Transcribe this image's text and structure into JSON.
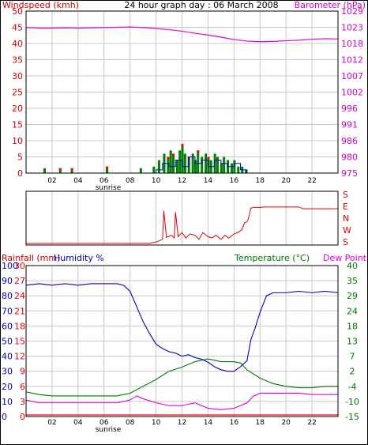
{
  "title": "24 hour graph day : 06 March 2008",
  "colors": {
    "wind_axis": "#cc0000",
    "baro_axis": "#cc00cc",
    "baro_line": "#dd00dd",
    "wind_line": "#0000cc",
    "gust_bar": "#008000",
    "gust_high": "#ff0000",
    "dir_line": "#dd0000",
    "rain": "#ee0000",
    "humidity": "#0000bb",
    "temperature": "#007700",
    "dewpoint": "#dd00dd",
    "grid": "#c8c8c8"
  },
  "panels": {
    "wind_baro": {
      "left_label": "Windspeed (kmh)",
      "right_label": "Barometer (hPa)",
      "left_ticks": [
        "50",
        "45",
        "40",
        "35",
        "30",
        "25",
        "20",
        "15",
        "10",
        "5",
        "0"
      ],
      "right_ticks": [
        "1029",
        "1023",
        "1018",
        "1012",
        "1007",
        "1002",
        "996",
        "991",
        "986",
        "980",
        "975"
      ],
      "x_ticks": [
        "02",
        "04",
        "06",
        "08",
        "10",
        "12",
        "14",
        "16",
        "18",
        "20",
        "22",
        ""
      ],
      "sunrise_label": "sunrise"
    },
    "direction": {
      "right_ticks": [
        "S",
        "E",
        "N",
        "W",
        "S"
      ]
    },
    "temp_hum": {
      "rain_label": "Rainfall (mm)",
      "hum_label": "Humidity %",
      "temp_label": "Temperature (°C)",
      "dew_label": "Dew Point",
      "rain_ticks": [
        "30",
        "27",
        "24",
        "21",
        "18",
        "15",
        "12",
        "9",
        "6",
        "3",
        "0"
      ],
      "hum_ticks": [
        "100",
        "90",
        "80",
        "70",
        "60",
        "50",
        "40",
        "30",
        "20",
        "10",
        "0"
      ],
      "right_ticks": [
        "40",
        "35",
        "29",
        "24",
        "18",
        "13",
        "7",
        "2",
        "-4",
        "-10",
        "-15"
      ],
      "x_ticks": [
        "02",
        "04",
        "06",
        "08",
        "10",
        "12",
        "14",
        "16",
        "18",
        "20",
        "22",
        ""
      ],
      "sunrise_label": "sunrise"
    }
  },
  "chart_data": [
    {
      "type": "line",
      "x_unit": "hour",
      "xlim": [
        0,
        24
      ],
      "series": [
        {
          "name": "Barometer (hPa)",
          "axis": "right",
          "ylim": [
            975,
            1029
          ],
          "x": [
            0,
            1,
            2,
            3,
            4,
            5,
            6,
            7,
            8,
            9,
            10,
            11,
            12,
            13,
            14,
            15,
            16,
            17,
            18,
            19,
            20,
            21,
            22,
            23,
            24
          ],
          "values": [
            1023.5,
            1023.3,
            1023.3,
            1023.4,
            1023.3,
            1023.4,
            1023.5,
            1023.6,
            1023.7,
            1023.5,
            1023.2,
            1022.8,
            1022.3,
            1021.6,
            1021.0,
            1020.3,
            1019.5,
            1019.0,
            1018.8,
            1018.9,
            1019.1,
            1019.3,
            1019.6,
            1019.8,
            1019.7
          ]
        },
        {
          "name": "Windspeed (kmh)",
          "axis": "left",
          "ylim": [
            0,
            50
          ],
          "x": [
            0,
            1,
            2,
            3,
            4,
            5,
            6,
            7,
            8,
            9,
            10,
            10.5,
            11,
            11.5,
            12,
            12.5,
            13,
            13.5,
            14,
            14.5,
            15,
            15.5,
            16,
            16.5,
            17,
            18,
            19,
            20,
            21,
            22,
            23,
            24
          ],
          "values": [
            0,
            0,
            0,
            0,
            0,
            0,
            0,
            0,
            0,
            0,
            1,
            3,
            2,
            4,
            2,
            5,
            3,
            4,
            2,
            4,
            3,
            2,
            3,
            1,
            0,
            0,
            0,
            0,
            0,
            0,
            0,
            0
          ]
        }
      ],
      "gusts": {
        "name": "Gust",
        "x": [
          1.4,
          2.6,
          3.5,
          6.2,
          8.8,
          9.8,
          10.2,
          10.6,
          10.9,
          11.1,
          11.3,
          11.6,
          11.8,
          12.0,
          12.2,
          12.5,
          12.8,
          13.0,
          13.2,
          13.5,
          13.8,
          14.0,
          14.2,
          14.5,
          14.7,
          15.0,
          15.2,
          15.5,
          15.8,
          16.0,
          16.3,
          16.6,
          16.9
        ],
        "values": [
          1.5,
          1.5,
          1.5,
          2,
          1.5,
          2,
          4,
          6,
          5,
          7,
          6,
          4,
          7,
          9,
          6,
          5,
          6,
          4,
          7,
          5,
          6,
          5,
          4,
          6,
          5,
          3,
          5,
          4,
          3,
          4,
          2,
          2,
          1
        ],
        "high": [
          false,
          true,
          true,
          true,
          false,
          false,
          false,
          false,
          true,
          false,
          true,
          false,
          false,
          true,
          false,
          true,
          false,
          false,
          true,
          false,
          false,
          true,
          false,
          false,
          false,
          false,
          false,
          false,
          false,
          false,
          false,
          false,
          false
        ]
      }
    },
    {
      "type": "line",
      "x_unit": "hour",
      "xlim": [
        0,
        24
      ],
      "ylabels": [
        "S",
        "E",
        "N",
        "W",
        "S"
      ],
      "series": [
        {
          "name": "Wind direction",
          "ylim": [
            0,
            360
          ],
          "x": [
            0,
            9.5,
            10,
            10.5,
            10.6,
            10.8,
            11.2,
            11.4,
            11.5,
            11.7,
            12,
            12.3,
            12.6,
            13,
            13.3,
            13.6,
            14,
            14.3,
            14.6,
            15,
            15.3,
            15.6,
            16,
            16.3,
            16.6,
            16.8,
            17,
            17.1,
            17.3,
            17.5,
            18,
            18.4,
            19,
            20,
            21,
            21.3,
            22,
            23,
            24
          ],
          "values": [
            0,
            0,
            10,
            30,
            240,
            45,
            60,
            40,
            230,
            50,
            80,
            40,
            70,
            60,
            30,
            80,
            50,
            40,
            60,
            30,
            60,
            40,
            70,
            80,
            100,
            150,
            160,
            180,
            260,
            265,
            265,
            268,
            268,
            268,
            268,
            255,
            255,
            255,
            255
          ]
        }
      ]
    },
    {
      "type": "line",
      "x_unit": "hour",
      "xlim": [
        0,
        24
      ],
      "series": [
        {
          "name": "Humidity %",
          "axis": "left",
          "ylim": [
            0,
            100
          ],
          "x": [
            0,
            1,
            2,
            3,
            4,
            5,
            6,
            7,
            7.5,
            8,
            8.5,
            9,
            9.5,
            10,
            10.5,
            11,
            11.5,
            12,
            12.5,
            13,
            13.5,
            14,
            14.5,
            15,
            15.5,
            16,
            16.5,
            17,
            17.3,
            17.6,
            18,
            18.5,
            19,
            20,
            21,
            22,
            23,
            24
          ],
          "values": [
            87,
            88,
            87,
            88,
            87,
            88,
            88,
            88,
            87,
            83,
            73,
            63,
            55,
            48,
            45,
            43,
            42,
            40,
            41,
            39,
            38,
            36,
            33,
            31,
            30,
            30,
            33,
            37,
            51,
            58,
            69,
            80,
            82,
            82,
            83,
            82,
            83,
            82
          ]
        },
        {
          "name": "Temperature (°C)",
          "axis": "right",
          "ylim": [
            -15,
            40
          ],
          "x": [
            0,
            1,
            2,
            3,
            4,
            5,
            6,
            7,
            8,
            9,
            10,
            11,
            12,
            13,
            14,
            15,
            16,
            16.5,
            17,
            18,
            19,
            20,
            21,
            22,
            23,
            24
          ],
          "values": [
            -6,
            -7,
            -7.5,
            -7.5,
            -7.5,
            -7.5,
            -7.5,
            -7.5,
            -6.5,
            -4,
            -1.5,
            1.5,
            3,
            5,
            6,
            5,
            5,
            4.5,
            2,
            -1,
            -3,
            -4,
            -4.5,
            -4.5,
            -4,
            -4
          ]
        },
        {
          "name": "Dew Point",
          "axis": "right",
          "ylim": [
            -15,
            40
          ],
          "x": [
            0,
            1,
            2,
            3,
            4,
            5,
            6,
            7,
            8,
            8.5,
            9,
            10,
            11,
            12,
            13,
            14,
            15,
            16,
            17,
            17.5,
            18,
            19,
            20,
            21,
            22,
            23,
            24
          ],
          "values": [
            -9,
            -10,
            -10,
            -10,
            -10,
            -10,
            -10,
            -10,
            -9,
            -7.5,
            -8.5,
            -10,
            -11,
            -11,
            -10,
            -12,
            -12.5,
            -12,
            -10,
            -7.5,
            -6.5,
            -6.5,
            -6.5,
            -6.5,
            -7,
            -7,
            -7
          ]
        },
        {
          "name": "Rainfall (mm)",
          "axis": "left2",
          "ylim": [
            0,
            30
          ],
          "x": [
            0,
            24
          ],
          "values": [
            0,
            0
          ]
        }
      ]
    }
  ]
}
